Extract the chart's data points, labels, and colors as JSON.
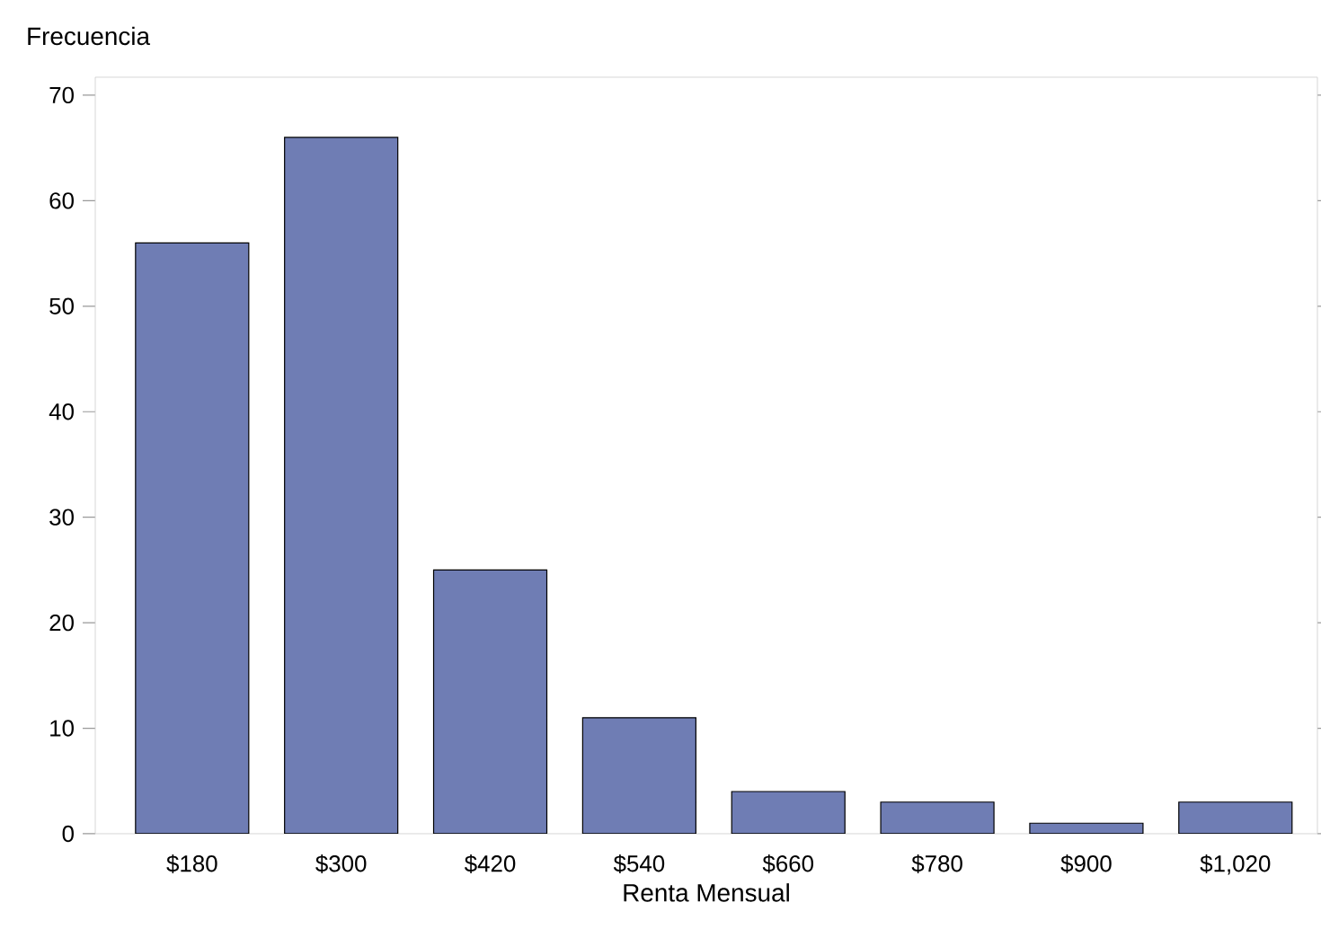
{
  "chart_data": {
    "type": "bar",
    "ylabel": "Frecuencia",
    "xlabel": "Renta Mensual",
    "categories": [
      "$180",
      "$300",
      "$420",
      "$540",
      "$660",
      "$780",
      "$900",
      "$1,020"
    ],
    "values": [
      56,
      66,
      25,
      11,
      4,
      3,
      1,
      3
    ],
    "color": "#6f7db4",
    "ylim": [
      0,
      71.7
    ],
    "yticks": [
      0,
      10,
      20,
      30,
      40,
      50,
      60,
      70
    ]
  }
}
